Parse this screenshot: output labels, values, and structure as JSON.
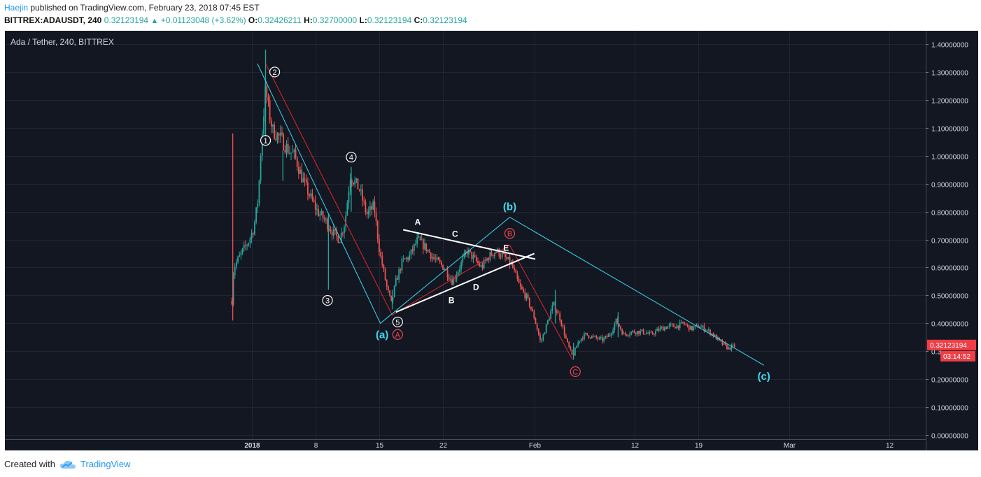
{
  "header": {
    "author": "Haejin",
    "published_text": "published on TradingView.com, February 23, 2018 07:45 EST"
  },
  "ohlc": {
    "symbol": "BITTREX:ADAUSDT, 240",
    "last": "0.32123194",
    "change": "+0.01123048 (+3.62%)",
    "open_label": "O:",
    "open": "0.32426211",
    "high_label": "H:",
    "high": "0.32700000",
    "low_label": "L:",
    "low": "0.32123194",
    "close_label": "C:",
    "close": "0.32123194"
  },
  "footer": {
    "created_with": "Created with",
    "brand": "TradingView"
  },
  "colors": {
    "background": "#131722",
    "grid": "#232632",
    "up": "#26a69a",
    "down": "#ef5350",
    "cyan": "#3fd8f0",
    "red_line": "#e0262c",
    "white": "#ffffff",
    "price_tag": "#ef3e46"
  },
  "chart_data": {
    "type": "candlestick",
    "title": "Ada / Tether, 240, BITTREX",
    "ylim": [
      0,
      1.4
    ],
    "yticks": [
      {
        "v": 1.4,
        "label": "1.40000000"
      },
      {
        "v": 1.3,
        "label": "1.30000000"
      },
      {
        "v": 1.2,
        "label": "1.20000000"
      },
      {
        "v": 1.1,
        "label": "1.10000000"
      },
      {
        "v": 1.0,
        "label": "1.00000000"
      },
      {
        "v": 0.9,
        "label": "0.90000000"
      },
      {
        "v": 0.8,
        "label": "0.80000000"
      },
      {
        "v": 0.7,
        "label": "0.70000000"
      },
      {
        "v": 0.6,
        "label": "0.60000000"
      },
      {
        "v": 0.5,
        "label": "0.50000000"
      },
      {
        "v": 0.4,
        "label": "0.40000000"
      },
      {
        "v": 0.3,
        "label": "0.3"
      },
      {
        "v": 0.2,
        "label": "0.20000000"
      },
      {
        "v": 0.1,
        "label": "0.10000000"
      },
      {
        "v": 0.0,
        "label": "0.00000000"
      }
    ],
    "xticks": [
      {
        "day": 1,
        "label": "2018",
        "bold": true
      },
      {
        "day": 8,
        "label": "8"
      },
      {
        "day": 15,
        "label": "15"
      },
      {
        "day": 22,
        "label": "22"
      },
      {
        "day": 32,
        "label": "Feb"
      },
      {
        "day": 43,
        "label": "12"
      },
      {
        "day": 50,
        "label": "19"
      },
      {
        "day": 60,
        "label": "Mar"
      },
      {
        "day": 71,
        "label": "12"
      }
    ],
    "price_tag": {
      "value": 0.32123194,
      "label": "0.32123194",
      "countdown": "03:14:52"
    },
    "anchors": [
      [
        -1.2,
        0.48
      ],
      [
        -1.0,
        0.6
      ],
      [
        0.0,
        0.66
      ],
      [
        0.6,
        0.69
      ],
      [
        1.2,
        0.74
      ],
      [
        1.7,
        0.85
      ],
      [
        2.0,
        1.03
      ],
      [
        2.5,
        1.24
      ],
      [
        2.9,
        1.15
      ],
      [
        3.3,
        1.09
      ],
      [
        4.2,
        1.06
      ],
      [
        5.0,
        1.02
      ],
      [
        5.7,
        1.0
      ],
      [
        6.5,
        0.92
      ],
      [
        7.3,
        0.86
      ],
      [
        8.2,
        0.8
      ],
      [
        9.0,
        0.77
      ],
      [
        10.0,
        0.72
      ],
      [
        10.6,
        0.7
      ],
      [
        11.2,
        0.76
      ],
      [
        11.8,
        0.93
      ],
      [
        12.8,
        0.88
      ],
      [
        13.6,
        0.79
      ],
      [
        14.4,
        0.82
      ],
      [
        15.0,
        0.66
      ],
      [
        15.8,
        0.53
      ],
      [
        16.3,
        0.47
      ],
      [
        16.8,
        0.55
      ],
      [
        17.5,
        0.62
      ],
      [
        18.3,
        0.64
      ],
      [
        19.2,
        0.7
      ],
      [
        20.1,
        0.67
      ],
      [
        21.0,
        0.63
      ],
      [
        22.1,
        0.6
      ],
      [
        23.0,
        0.55
      ],
      [
        23.8,
        0.6
      ],
      [
        24.6,
        0.66
      ],
      [
        25.4,
        0.63
      ],
      [
        26.2,
        0.6
      ],
      [
        27.0,
        0.64
      ],
      [
        27.8,
        0.66
      ],
      [
        28.6,
        0.64
      ],
      [
        29.5,
        0.61
      ],
      [
        30.4,
        0.53
      ],
      [
        31.2,
        0.49
      ],
      [
        32.0,
        0.42
      ],
      [
        32.7,
        0.33
      ],
      [
        33.4,
        0.4
      ],
      [
        34.1,
        0.47
      ],
      [
        34.8,
        0.42
      ],
      [
        35.6,
        0.33
      ],
      [
        36.2,
        0.28
      ],
      [
        36.9,
        0.34
      ],
      [
        37.6,
        0.36
      ],
      [
        38.5,
        0.35
      ],
      [
        39.5,
        0.34
      ],
      [
        40.3,
        0.36
      ],
      [
        41.0,
        0.41
      ],
      [
        41.8,
        0.36
      ],
      [
        42.8,
        0.37
      ],
      [
        43.8,
        0.37
      ],
      [
        44.8,
        0.36
      ],
      [
        45.8,
        0.38
      ],
      [
        46.8,
        0.39
      ],
      [
        47.6,
        0.39
      ],
      [
        48.4,
        0.4
      ],
      [
        49.2,
        0.38
      ],
      [
        50.0,
        0.39
      ],
      [
        50.8,
        0.38
      ],
      [
        51.6,
        0.36
      ],
      [
        52.5,
        0.33
      ],
      [
        53.3,
        0.31
      ],
      [
        54.0,
        0.32
      ]
    ],
    "spikes": [
      {
        "day": -1.1,
        "high": 1.08,
        "low": 0.41
      },
      {
        "day": 2.5,
        "high": 1.38,
        "low": 1.05
      },
      {
        "day": 4.4,
        "high": 1.02,
        "low": 0.91
      },
      {
        "day": 9.4,
        "high": 0.79,
        "low": 0.52
      },
      {
        "day": 11.9,
        "high": 0.96,
        "low": 0.8
      },
      {
        "day": 16.4,
        "high": 0.52,
        "low": 0.45
      },
      {
        "day": 36.3,
        "high": 0.33,
        "low": 0.27
      },
      {
        "day": 34.3,
        "high": 0.52,
        "low": 0.4
      },
      {
        "day": 41.2,
        "high": 0.44,
        "low": 0.35
      }
    ],
    "wave_labels": [
      {
        "text": "1",
        "day": 2.5,
        "price": 1.055,
        "style": "circle-white"
      },
      {
        "text": "2",
        "day": 3.5,
        "price": 1.3,
        "style": "circle-white"
      },
      {
        "text": "3",
        "day": 9.3,
        "price": 0.482,
        "style": "circle-white"
      },
      {
        "text": "4",
        "day": 11.9,
        "price": 0.995,
        "style": "circle-white"
      },
      {
        "text": "5",
        "day": 17.0,
        "price": 0.405,
        "style": "circle-white"
      },
      {
        "text": "A",
        "day": 17.0,
        "price": 0.36,
        "style": "circle-red"
      },
      {
        "text": "B",
        "day": 29.3,
        "price": 0.722,
        "style": "circle-red"
      },
      {
        "text": "C",
        "day": 36.5,
        "price": 0.227,
        "style": "circle-red"
      },
      {
        "text": "A",
        "day": 19.2,
        "price": 0.765,
        "style": "plain-white"
      },
      {
        "text": "B",
        "day": 22.9,
        "price": 0.485,
        "style": "plain-white"
      },
      {
        "text": "C",
        "day": 23.3,
        "price": 0.722,
        "style": "plain-white"
      },
      {
        "text": "D",
        "day": 25.6,
        "price": 0.532,
        "style": "plain-white"
      },
      {
        "text": "E",
        "day": 28.9,
        "price": 0.672,
        "style": "plain-white"
      },
      {
        "text": "(a)",
        "day": 15.3,
        "price": 0.36,
        "style": "plain-cyan"
      },
      {
        "text": "(b)",
        "day": 29.3,
        "price": 0.818,
        "style": "plain-cyan"
      },
      {
        "text": "(c)",
        "day": 57.2,
        "price": 0.21,
        "style": "plain-cyan"
      }
    ],
    "cyan_path": [
      [
        1.6,
        1.33
      ],
      [
        15.1,
        0.4
      ],
      [
        29.3,
        0.78
      ],
      [
        57.2,
        0.25
      ]
    ],
    "red_path": [
      [
        2.5,
        1.33
      ],
      [
        16.4,
        0.43
      ],
      [
        29.3,
        0.68
      ],
      [
        36.2,
        0.27
      ]
    ],
    "triangle_upper": [
      [
        17.6,
        0.735
      ],
      [
        32.1,
        0.63
      ]
    ],
    "triangle_lower": [
      [
        16.8,
        0.44
      ],
      [
        32.0,
        0.65
      ]
    ]
  }
}
